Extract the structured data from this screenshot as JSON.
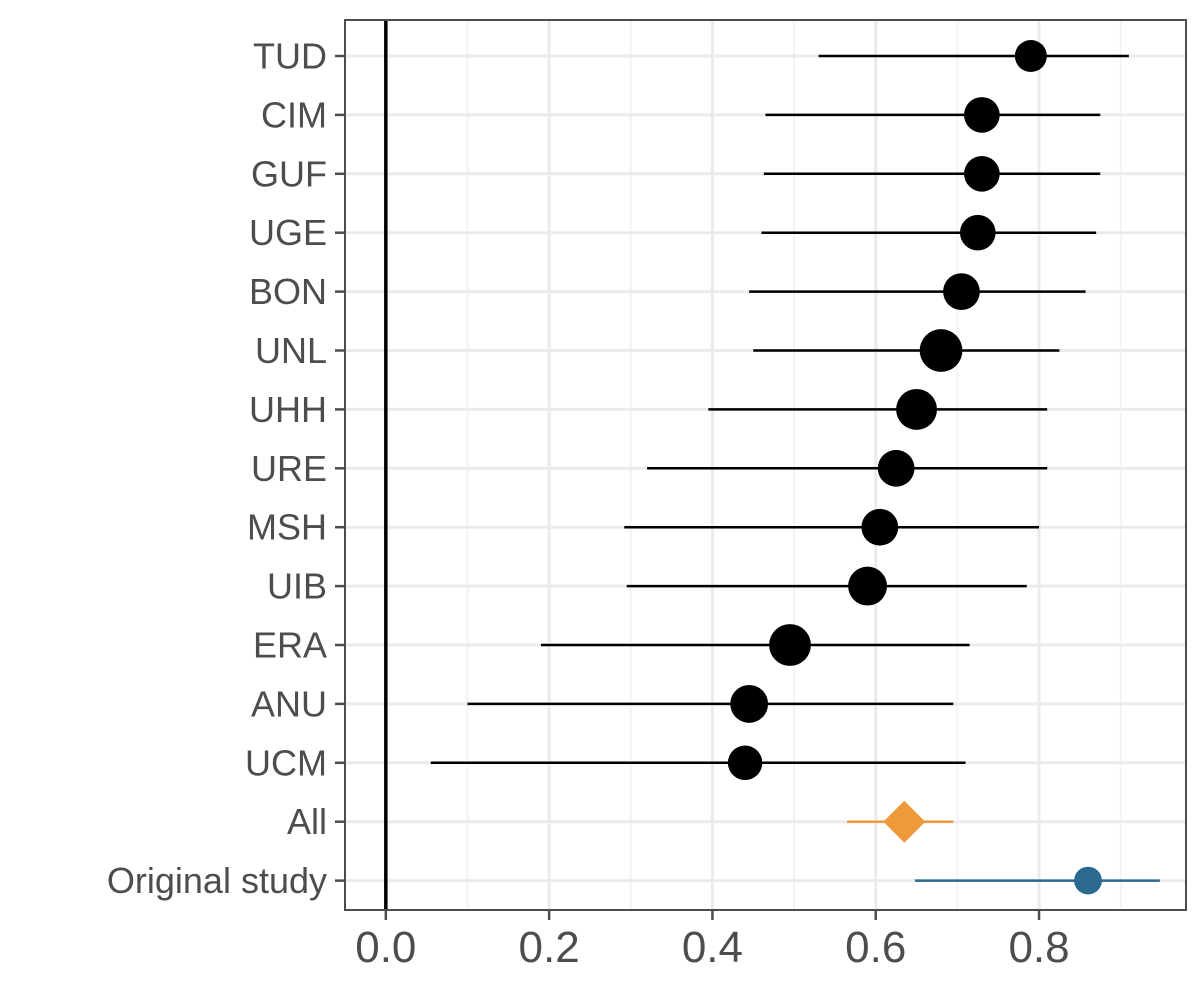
{
  "chart_data": {
    "type": "forest",
    "title": "",
    "xlabel": "",
    "ylabel": "",
    "xlim": [
      -0.05,
      0.98
    ],
    "x_ticks": [
      0.0,
      0.2,
      0.4,
      0.6,
      0.8
    ],
    "x_tick_labels": [
      "0.0",
      "0.2",
      "0.4",
      "0.6",
      "0.8"
    ],
    "reference_line": 0.0,
    "grid": true,
    "rows": [
      {
        "label": "TUD",
        "estimate": 0.79,
        "lower": 0.53,
        "upper": 0.91,
        "weight": 1.0,
        "shape": "circle",
        "color": "#000000"
      },
      {
        "label": "CIM",
        "estimate": 0.73,
        "lower": 0.465,
        "upper": 0.875,
        "weight": 1.3,
        "shape": "circle",
        "color": "#000000"
      },
      {
        "label": "GUF",
        "estimate": 0.73,
        "lower": 0.463,
        "upper": 0.875,
        "weight": 1.3,
        "shape": "circle",
        "color": "#000000"
      },
      {
        "label": "UGE",
        "estimate": 0.725,
        "lower": 0.46,
        "upper": 0.87,
        "weight": 1.3,
        "shape": "circle",
        "color": "#000000"
      },
      {
        "label": "BON",
        "estimate": 0.705,
        "lower": 0.445,
        "upper": 0.857,
        "weight": 1.4,
        "shape": "circle",
        "color": "#000000"
      },
      {
        "label": "UNL",
        "estimate": 0.68,
        "lower": 0.45,
        "upper": 0.825,
        "weight": 2.0,
        "shape": "circle",
        "color": "#000000"
      },
      {
        "label": "UHH",
        "estimate": 0.65,
        "lower": 0.395,
        "upper": 0.81,
        "weight": 1.8,
        "shape": "circle",
        "color": "#000000"
      },
      {
        "label": "URE",
        "estimate": 0.625,
        "lower": 0.32,
        "upper": 0.81,
        "weight": 1.4,
        "shape": "circle",
        "color": "#000000"
      },
      {
        "label": "MSH",
        "estimate": 0.605,
        "lower": 0.292,
        "upper": 0.8,
        "weight": 1.4,
        "shape": "circle",
        "color": "#000000"
      },
      {
        "label": "UIB",
        "estimate": 0.59,
        "lower": 0.295,
        "upper": 0.785,
        "weight": 1.6,
        "shape": "circle",
        "color": "#000000"
      },
      {
        "label": "ERA",
        "estimate": 0.495,
        "lower": 0.19,
        "upper": 0.715,
        "weight": 1.9,
        "shape": "circle",
        "color": "#000000"
      },
      {
        "label": "ANU",
        "estimate": 0.445,
        "lower": 0.1,
        "upper": 0.695,
        "weight": 1.5,
        "shape": "circle",
        "color": "#000000"
      },
      {
        "label": "UCM",
        "estimate": 0.44,
        "lower": 0.055,
        "upper": 0.71,
        "weight": 1.2,
        "shape": "circle",
        "color": "#000000"
      },
      {
        "label": "All",
        "estimate": 0.635,
        "lower": 0.565,
        "upper": 0.695,
        "weight": 1.0,
        "shape": "diamond",
        "color": "#ee9a3a"
      },
      {
        "label": "Original study",
        "estimate": 0.86,
        "lower": 0.648,
        "upper": 0.948,
        "weight": 0.7,
        "shape": "circle",
        "color": "#2b6a8e"
      }
    ]
  },
  "colors": {
    "panel_border": "#4d4d4d",
    "grid_major": "#ebebeb",
    "grid_minor": "#f3f3f3",
    "tick_label": "#4d4d4d",
    "reference_line": "#000000"
  }
}
